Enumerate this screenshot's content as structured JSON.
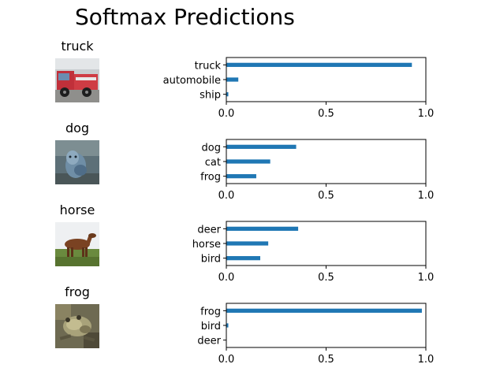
{
  "title": "Softmax Predictions",
  "bar_color": "#1f77b4",
  "panels": [
    {
      "image_label": "truck",
      "image_kind": "truck-photo"
    },
    {
      "image_label": "dog",
      "image_kind": "dog-photo"
    },
    {
      "image_label": "horse",
      "image_kind": "horse-photo"
    },
    {
      "image_label": "frog",
      "image_kind": "frog-photo"
    }
  ],
  "chart_data": [
    {
      "type": "bar",
      "orientation": "horizontal",
      "title": "",
      "categories": [
        "truck",
        "automobile",
        "ship"
      ],
      "values": [
        0.93,
        0.06,
        0.01
      ],
      "xlim": [
        0,
        1
      ],
      "xticks": [
        "0.0",
        "0.5",
        "1.0"
      ],
      "grid": false,
      "legend": "none"
    },
    {
      "type": "bar",
      "orientation": "horizontal",
      "title": "",
      "categories": [
        "dog",
        "cat",
        "frog"
      ],
      "values": [
        0.35,
        0.22,
        0.15
      ],
      "xlim": [
        0,
        1
      ],
      "xticks": [
        "0.0",
        "0.5",
        "1.0"
      ],
      "grid": false,
      "legend": "none"
    },
    {
      "type": "bar",
      "orientation": "horizontal",
      "title": "",
      "categories": [
        "deer",
        "horse",
        "bird"
      ],
      "values": [
        0.36,
        0.21,
        0.17
      ],
      "xlim": [
        0,
        1
      ],
      "xticks": [
        "0.0",
        "0.5",
        "1.0"
      ],
      "grid": false,
      "legend": "none"
    },
    {
      "type": "bar",
      "orientation": "horizontal",
      "title": "",
      "categories": [
        "frog",
        "bird",
        "deer"
      ],
      "values": [
        0.98,
        0.01,
        0.0
      ],
      "xlim": [
        0,
        1
      ],
      "xticks": [
        "0.0",
        "0.5",
        "1.0"
      ],
      "grid": false,
      "legend": "none"
    }
  ]
}
